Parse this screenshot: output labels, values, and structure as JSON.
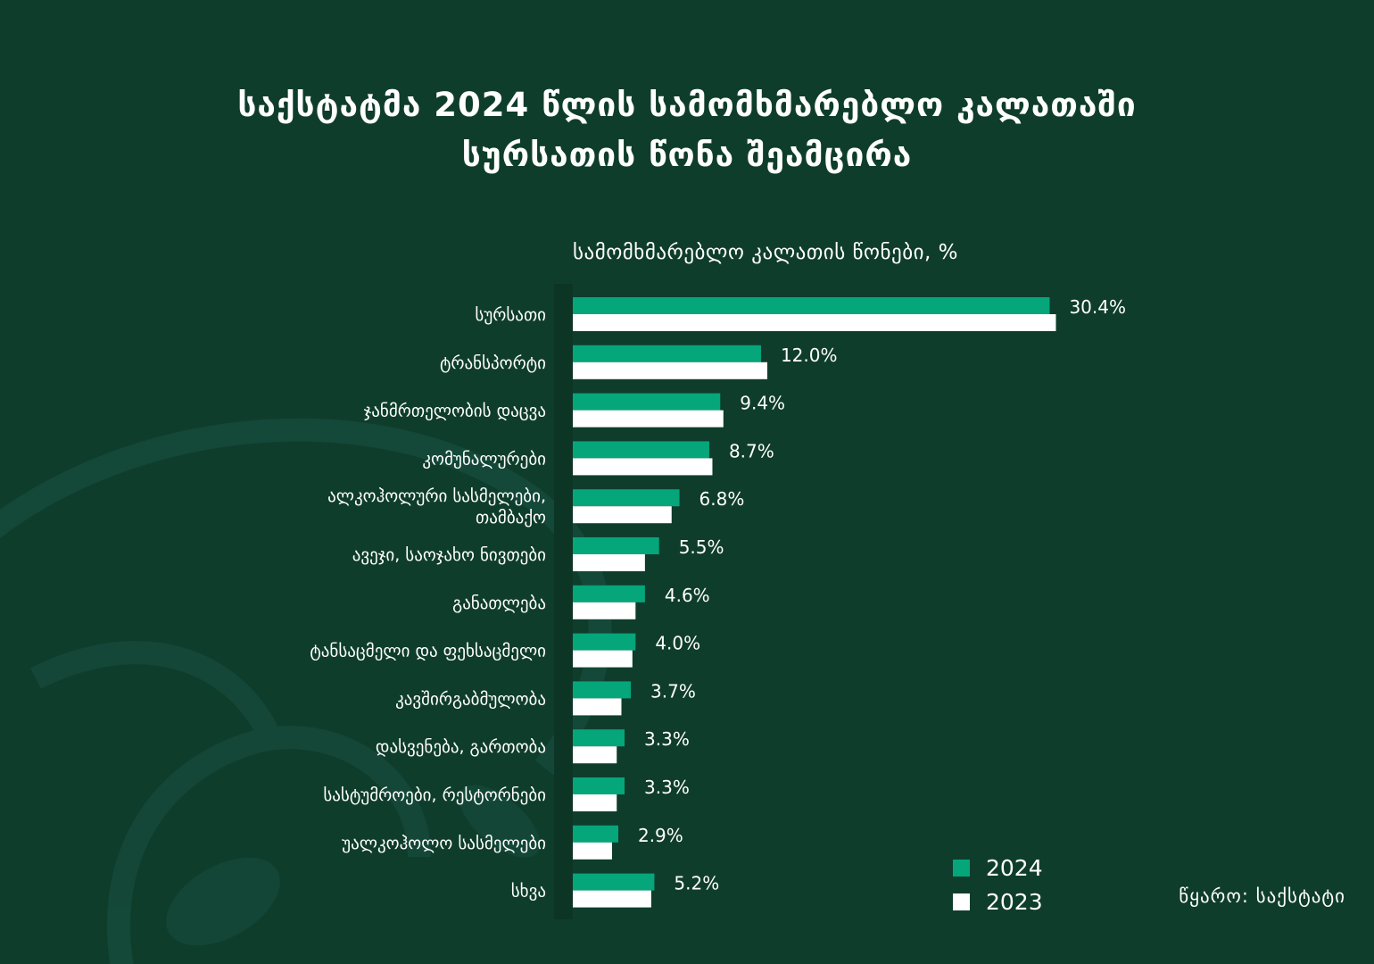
{
  "header": {
    "title_line1": "საქსტატმა 2024 წლის სამომხმარებლო კალათაში",
    "title_line2": "სურსათის წონა შეამცირა"
  },
  "colors": {
    "background": "#0f3d2c",
    "series_2024": "#05a67a",
    "series_2023": "#ffffff"
  },
  "chart_data": {
    "type": "bar",
    "orientation": "horizontal",
    "title": "სამომხმარებლო კალათის წონები, %",
    "categories": [
      [
        "სურსათი"
      ],
      [
        "ტრანსპორტი"
      ],
      [
        "ჯანმრთელობის დაცვა"
      ],
      [
        "კომუნალურები"
      ],
      [
        "ალკოჰოლური სასმელები,",
        "თამბაქო"
      ],
      [
        "ავეჯი, საოჯახო ნივთები"
      ],
      [
        "განათლება"
      ],
      [
        "ტანსაცმელი და ფეხსაცმელი"
      ],
      [
        "კავშირგაბმულობა"
      ],
      [
        "დასვენება, გართობა"
      ],
      [
        "სასტუმროები, რესტორნები"
      ],
      [
        "უალკოჰოლო სასმელები"
      ],
      [
        "სხვა"
      ]
    ],
    "series": [
      {
        "name": "2024",
        "values": [
          30.4,
          12.0,
          9.4,
          8.7,
          6.8,
          5.5,
          4.6,
          4.0,
          3.7,
          3.3,
          3.3,
          2.9,
          5.2
        ]
      },
      {
        "name": "2023",
        "values": [
          30.8,
          12.4,
          9.6,
          8.9,
          6.3,
          4.6,
          4.0,
          3.8,
          3.1,
          2.8,
          2.8,
          2.5,
          5.0
        ]
      }
    ],
    "data_labels": [
      "30.4%",
      "12.0%",
      "9.4%",
      "8.7%",
      "6.8%",
      "5.5%",
      "4.6%",
      "4.0%",
      "3.7%",
      "3.3%",
      "3.3%",
      "2.9%",
      "5.2%"
    ],
    "legend": [
      "2024",
      "2023"
    ],
    "legend_position": "bottom-right",
    "xlim": [
      0,
      31
    ]
  },
  "source": "წყარო: საქსტატი"
}
